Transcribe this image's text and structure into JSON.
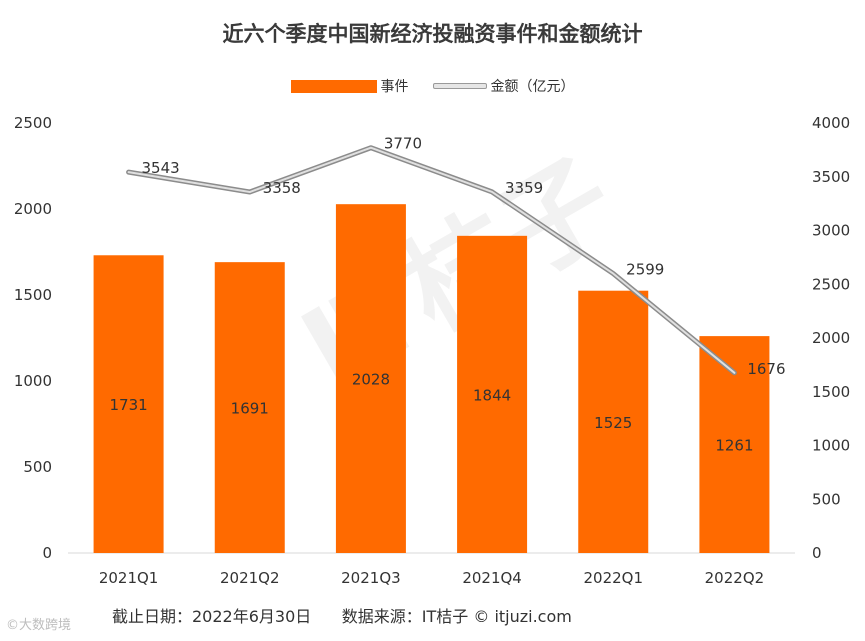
{
  "title": "近六个季度中国新经济投融资事件和金额统计",
  "legend": {
    "bar_label": "事件",
    "line_label": "金额（亿元）"
  },
  "colors": {
    "bar": "#ff6a00",
    "line": "#a6a6a6",
    "axis": "#d9d9d9",
    "text": "#333333"
  },
  "chart_data": {
    "type": "bar+line",
    "title": "近六个季度中国新经济投融资事件和金额统计",
    "categories": [
      "2021Q1",
      "2021Q2",
      "2021Q3",
      "2021Q4",
      "2022Q1",
      "2022Q2"
    ],
    "series": [
      {
        "name": "事件",
        "type": "bar",
        "axis": "left",
        "values": [
          1731,
          1691,
          2028,
          1844,
          1525,
          1261
        ]
      },
      {
        "name": "金额（亿元）",
        "type": "line",
        "axis": "right",
        "values": [
          3543,
          3358,
          3770,
          3359,
          2599,
          1676
        ]
      }
    ],
    "left_axis": {
      "min": 0,
      "max": 2500,
      "ticks": [
        0,
        500,
        1000,
        1500,
        2000,
        2500
      ]
    },
    "right_axis": {
      "min": 0,
      "max": 4000,
      "ticks": [
        0,
        500,
        1000,
        1500,
        2000,
        2500,
        3000,
        3500,
        4000
      ]
    },
    "legend_position": "top"
  },
  "footer": "截止日期：2022年6月30日      数据来源：IT桔子 © itjuzi.com",
  "watermark": "IT桔子  ITJUZI.COM",
  "corner_mark": "©大数跨境"
}
